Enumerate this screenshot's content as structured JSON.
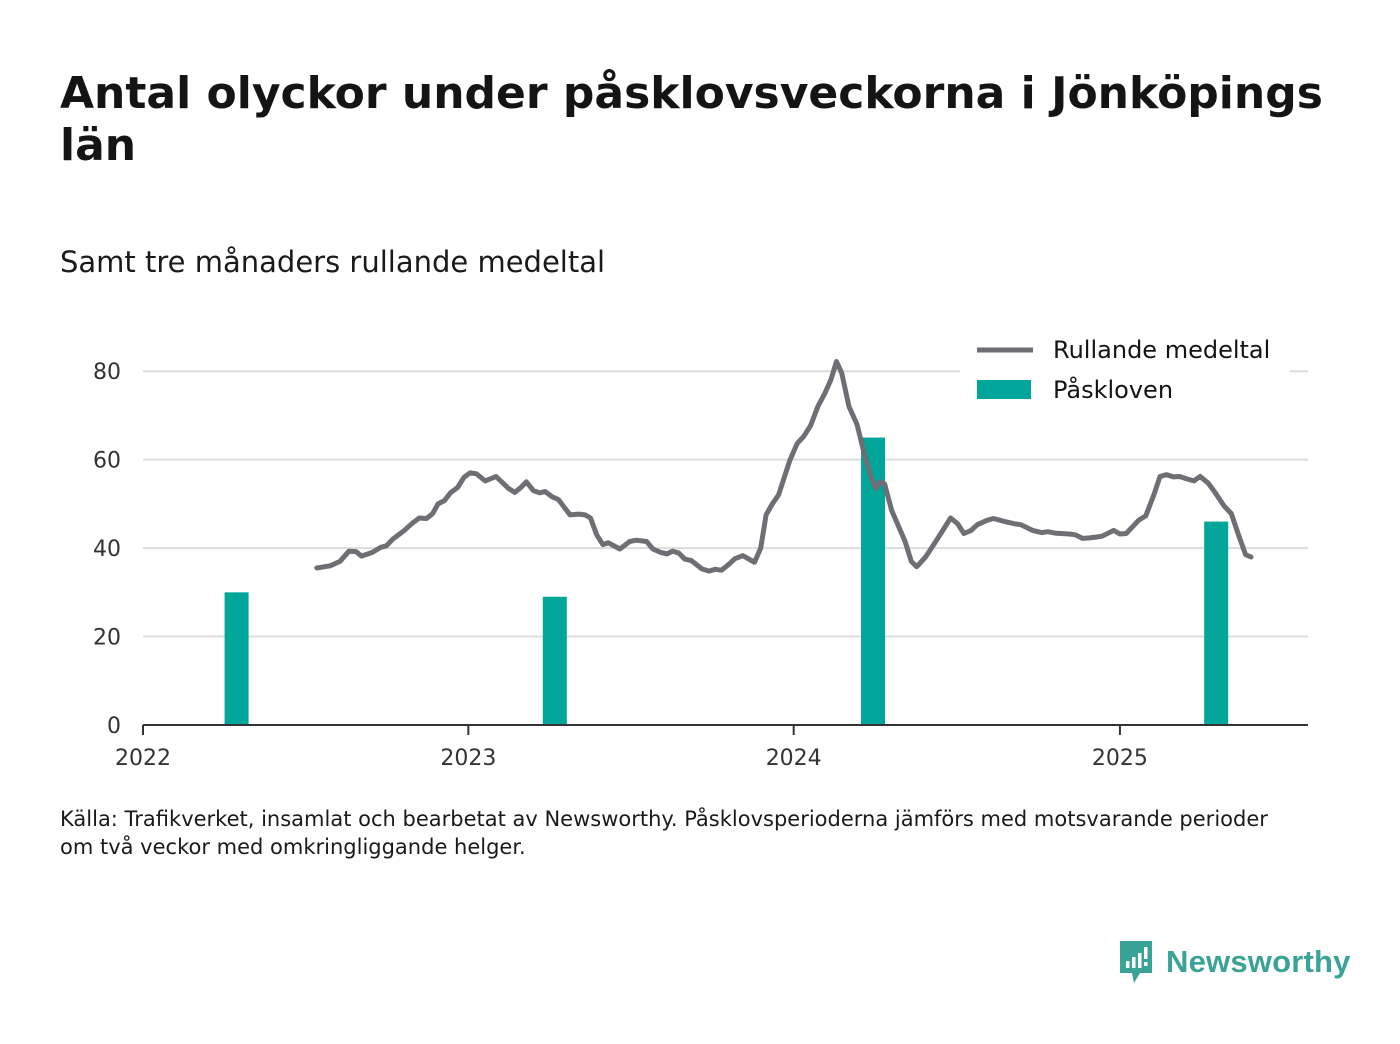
{
  "title": "Antal olyckor under påsklovsveckorna i Jönköpings län",
  "subtitle": "Samt tre månaders rullande medeltal",
  "source": "Källa: Trafikverket, insamlat och bearbetat av Newsworthy. Påsklovsperioderna jämförs med motsvarande perioder\nom två veckor med omkringliggande helger.",
  "brand": {
    "name": "Newsworthy",
    "color": "#3aa397"
  },
  "colors": {
    "line": "#6e6e75",
    "bar": "#00a69a",
    "grid": "#dcdcdc",
    "axis": "#333333"
  },
  "chart_data": {
    "type": "bar",
    "title": "Antal olyckor under påsklovsveckorna i Jönköpings län",
    "subtitle": "Samt tre månaders rullande medeltal",
    "xlabel": "",
    "ylabel": "",
    "x_ticks": [
      "2022",
      "2023",
      "2024",
      "2025"
    ],
    "xlim": [
      "2022-01-01",
      "2025-07-31"
    ],
    "y_ticks": [
      0,
      20,
      40,
      60,
      80
    ],
    "ylim": [
      0,
      90
    ],
    "grid": true,
    "legend_position": "top-right",
    "series": [
      {
        "name": "Påskloven",
        "type": "bar",
        "points": [
          {
            "x": "2022-04-16",
            "y": 30
          },
          {
            "x": "2023-04-08",
            "y": 29
          },
          {
            "x": "2024-03-30",
            "y": 65
          },
          {
            "x": "2025-04-19",
            "y": 46
          }
        ]
      },
      {
        "name": "Rullande medeltal",
        "type": "line",
        "points": [
          {
            "x": "2022-07-15",
            "y": 35.5
          },
          {
            "x": "2022-07-30",
            "y": 36
          },
          {
            "x": "2022-08-10",
            "y": 37
          },
          {
            "x": "2022-08-20",
            "y": 39.3
          },
          {
            "x": "2022-08-28",
            "y": 39.2
          },
          {
            "x": "2022-09-03",
            "y": 38.2
          },
          {
            "x": "2022-09-15",
            "y": 39
          },
          {
            "x": "2022-09-25",
            "y": 40.2
          },
          {
            "x": "2022-10-01",
            "y": 40.5
          },
          {
            "x": "2022-10-08",
            "y": 42
          },
          {
            "x": "2022-10-20",
            "y": 43.8
          },
          {
            "x": "2022-10-30",
            "y": 45.6
          },
          {
            "x": "2022-11-07",
            "y": 46.8
          },
          {
            "x": "2022-11-15",
            "y": 46.7
          },
          {
            "x": "2022-11-22",
            "y": 47.8
          },
          {
            "x": "2022-11-28",
            "y": 50
          },
          {
            "x": "2022-12-05",
            "y": 50.7
          },
          {
            "x": "2022-12-12",
            "y": 52.5
          },
          {
            "x": "2022-12-20",
            "y": 53.7
          },
          {
            "x": "2022-12-27",
            "y": 56
          },
          {
            "x": "2023-01-03",
            "y": 57
          },
          {
            "x": "2023-01-10",
            "y": 56.8
          },
          {
            "x": "2023-01-20",
            "y": 55.2
          },
          {
            "x": "2023-02-01",
            "y": 56.2
          },
          {
            "x": "2023-02-15",
            "y": 53.5
          },
          {
            "x": "2023-02-22",
            "y": 52.6
          },
          {
            "x": "2023-03-01",
            "y": 53.7
          },
          {
            "x": "2023-03-07",
            "y": 55
          },
          {
            "x": "2023-03-15",
            "y": 53
          },
          {
            "x": "2023-03-22",
            "y": 52.5
          },
          {
            "x": "2023-03-28",
            "y": 52.8
          },
          {
            "x": "2023-04-05",
            "y": 51.6
          },
          {
            "x": "2023-04-12",
            "y": 51
          },
          {
            "x": "2023-04-25",
            "y": 47.5
          },
          {
            "x": "2023-05-05",
            "y": 47.7
          },
          {
            "x": "2023-05-12",
            "y": 47.5
          },
          {
            "x": "2023-05-18",
            "y": 46.8
          },
          {
            "x": "2023-05-25",
            "y": 43
          },
          {
            "x": "2023-06-01",
            "y": 40.8
          },
          {
            "x": "2023-06-07",
            "y": 41.2
          },
          {
            "x": "2023-06-20",
            "y": 39.8
          },
          {
            "x": "2023-07-01",
            "y": 41.5
          },
          {
            "x": "2023-07-08",
            "y": 41.8
          },
          {
            "x": "2023-07-20",
            "y": 41.5
          },
          {
            "x": "2023-07-27",
            "y": 39.8
          },
          {
            "x": "2023-08-05",
            "y": 39
          },
          {
            "x": "2023-08-12",
            "y": 38.7
          },
          {
            "x": "2023-08-18",
            "y": 39.3
          },
          {
            "x": "2023-08-25",
            "y": 38.9
          },
          {
            "x": "2023-09-01",
            "y": 37.5
          },
          {
            "x": "2023-09-08",
            "y": 37.2
          },
          {
            "x": "2023-09-20",
            "y": 35.3
          },
          {
            "x": "2023-09-28",
            "y": 34.8
          },
          {
            "x": "2023-10-05",
            "y": 35.2
          },
          {
            "x": "2023-10-12",
            "y": 35
          },
          {
            "x": "2023-10-20",
            "y": 36.3
          },
          {
            "x": "2023-10-27",
            "y": 37.6
          },
          {
            "x": "2023-11-05",
            "y": 38.3
          },
          {
            "x": "2023-11-12",
            "y": 37.5
          },
          {
            "x": "2023-11-18",
            "y": 36.8
          },
          {
            "x": "2023-11-25",
            "y": 40
          },
          {
            "x": "2023-12-01",
            "y": 47.5
          },
          {
            "x": "2023-12-08",
            "y": 50
          },
          {
            "x": "2023-12-15",
            "y": 52
          },
          {
            "x": "2023-12-28",
            "y": 60
          },
          {
            "x": "2024-01-05",
            "y": 63.7
          },
          {
            "x": "2024-01-12",
            "y": 65.2
          },
          {
            "x": "2024-01-20",
            "y": 67.7
          },
          {
            "x": "2024-01-28",
            "y": 72
          },
          {
            "x": "2024-02-05",
            "y": 75
          },
          {
            "x": "2024-02-12",
            "y": 78.2
          },
          {
            "x": "2024-02-18",
            "y": 82.2
          },
          {
            "x": "2024-02-24",
            "y": 79.5
          },
          {
            "x": "2024-03-03",
            "y": 72
          },
          {
            "x": "2024-03-12",
            "y": 68
          },
          {
            "x": "2024-03-20",
            "y": 61.5
          },
          {
            "x": "2024-03-28",
            "y": 56
          },
          {
            "x": "2024-04-02",
            "y": 53.5
          },
          {
            "x": "2024-04-07",
            "y": 55
          },
          {
            "x": "2024-04-12",
            "y": 54.5
          },
          {
            "x": "2024-04-20",
            "y": 48.5
          },
          {
            "x": "2024-05-05",
            "y": 41.5
          },
          {
            "x": "2024-05-12",
            "y": 37
          },
          {
            "x": "2024-05-18",
            "y": 35.8
          },
          {
            "x": "2024-05-28",
            "y": 38
          },
          {
            "x": "2024-06-10",
            "y": 42
          },
          {
            "x": "2024-06-25",
            "y": 46.8
          },
          {
            "x": "2024-07-03",
            "y": 45.5
          },
          {
            "x": "2024-07-10",
            "y": 43.3
          },
          {
            "x": "2024-07-18",
            "y": 44
          },
          {
            "x": "2024-07-25",
            "y": 45.3
          },
          {
            "x": "2024-08-05",
            "y": 46.3
          },
          {
            "x": "2024-08-12",
            "y": 46.7
          },
          {
            "x": "2024-08-25",
            "y": 46
          },
          {
            "x": "2024-09-05",
            "y": 45.5
          },
          {
            "x": "2024-09-12",
            "y": 45.3
          },
          {
            "x": "2024-09-25",
            "y": 44
          },
          {
            "x": "2024-10-05",
            "y": 43.5
          },
          {
            "x": "2024-10-12",
            "y": 43.7
          },
          {
            "x": "2024-10-20",
            "y": 43.4
          },
          {
            "x": "2024-11-05",
            "y": 43.2
          },
          {
            "x": "2024-11-12",
            "y": 43
          },
          {
            "x": "2024-11-20",
            "y": 42.2
          },
          {
            "x": "2024-11-28",
            "y": 42.3
          },
          {
            "x": "2024-12-05",
            "y": 42.5
          },
          {
            "x": "2024-12-12",
            "y": 42.7
          },
          {
            "x": "2024-12-25",
            "y": 44
          },
          {
            "x": "2025-01-01",
            "y": 43.2
          },
          {
            "x": "2025-01-08",
            "y": 43.3
          },
          {
            "x": "2025-01-15",
            "y": 44.8
          },
          {
            "x": "2025-01-22",
            "y": 46.3
          },
          {
            "x": "2025-01-30",
            "y": 47.3
          },
          {
            "x": "2025-02-08",
            "y": 52
          },
          {
            "x": "2025-02-15",
            "y": 56.2
          },
          {
            "x": "2025-02-22",
            "y": 56.6
          },
          {
            "x": "2025-03-02",
            "y": 56.1
          },
          {
            "x": "2025-03-09",
            "y": 56.2
          },
          {
            "x": "2025-03-18",
            "y": 55.6
          },
          {
            "x": "2025-03-25",
            "y": 55.2
          },
          {
            "x": "2025-04-01",
            "y": 56.2
          },
          {
            "x": "2025-04-10",
            "y": 54.7
          },
          {
            "x": "2025-04-18",
            "y": 52.5
          },
          {
            "x": "2025-04-28",
            "y": 49.5
          },
          {
            "x": "2025-05-06",
            "y": 47.8
          },
          {
            "x": "2025-05-14",
            "y": 43
          },
          {
            "x": "2025-05-22",
            "y": 38.5
          },
          {
            "x": "2025-05-28",
            "y": 38
          }
        ]
      }
    ]
  }
}
